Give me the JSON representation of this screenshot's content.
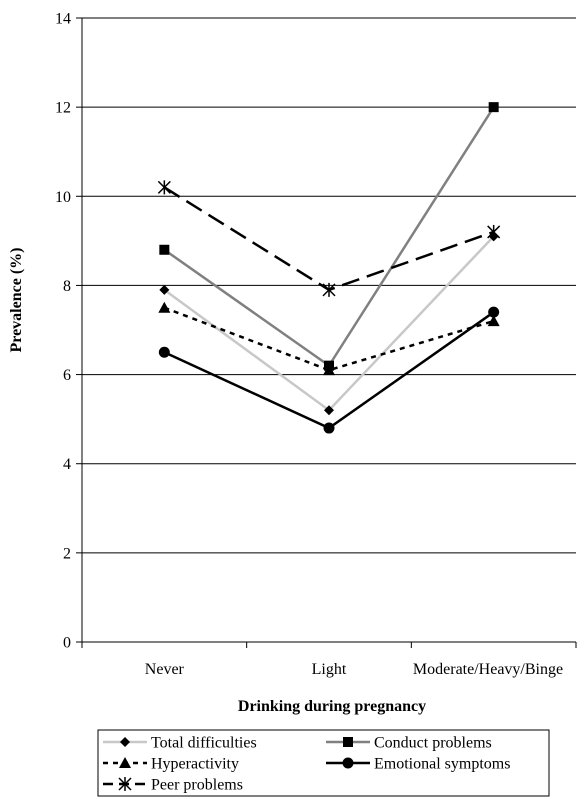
{
  "chart_data": {
    "type": "line",
    "title": "",
    "xlabel": "Drinking during pregnancy",
    "ylabel": "Prevalence (%)",
    "categories": [
      "Never",
      "Light",
      "Moderate/Heavy/Binge"
    ],
    "ylim": [
      0,
      14
    ],
    "yticks": [
      0,
      2,
      4,
      6,
      8,
      10,
      12,
      14
    ],
    "grid": true,
    "legend_position": "bottom",
    "series": [
      {
        "name": "Total difficulties",
        "values": [
          7.9,
          5.2,
          9.1
        ],
        "color": "#c8c8c8",
        "marker": "diamond",
        "dash": "solid"
      },
      {
        "name": "Conduct problems",
        "values": [
          8.8,
          6.2,
          12.0
        ],
        "color": "#808080",
        "marker": "square",
        "dash": "solid"
      },
      {
        "name": "Hyperactivity",
        "values": [
          7.5,
          6.1,
          7.2
        ],
        "color": "#000000",
        "marker": "triangle",
        "dash": "dotted"
      },
      {
        "name": "Emotional symptoms",
        "values": [
          6.5,
          4.8,
          7.4
        ],
        "color": "#000000",
        "marker": "circle",
        "dash": "solid"
      },
      {
        "name": "Peer problems",
        "values": [
          10.2,
          7.9,
          9.2
        ],
        "color": "#000000",
        "marker": "star",
        "dash": "dashed"
      }
    ]
  }
}
